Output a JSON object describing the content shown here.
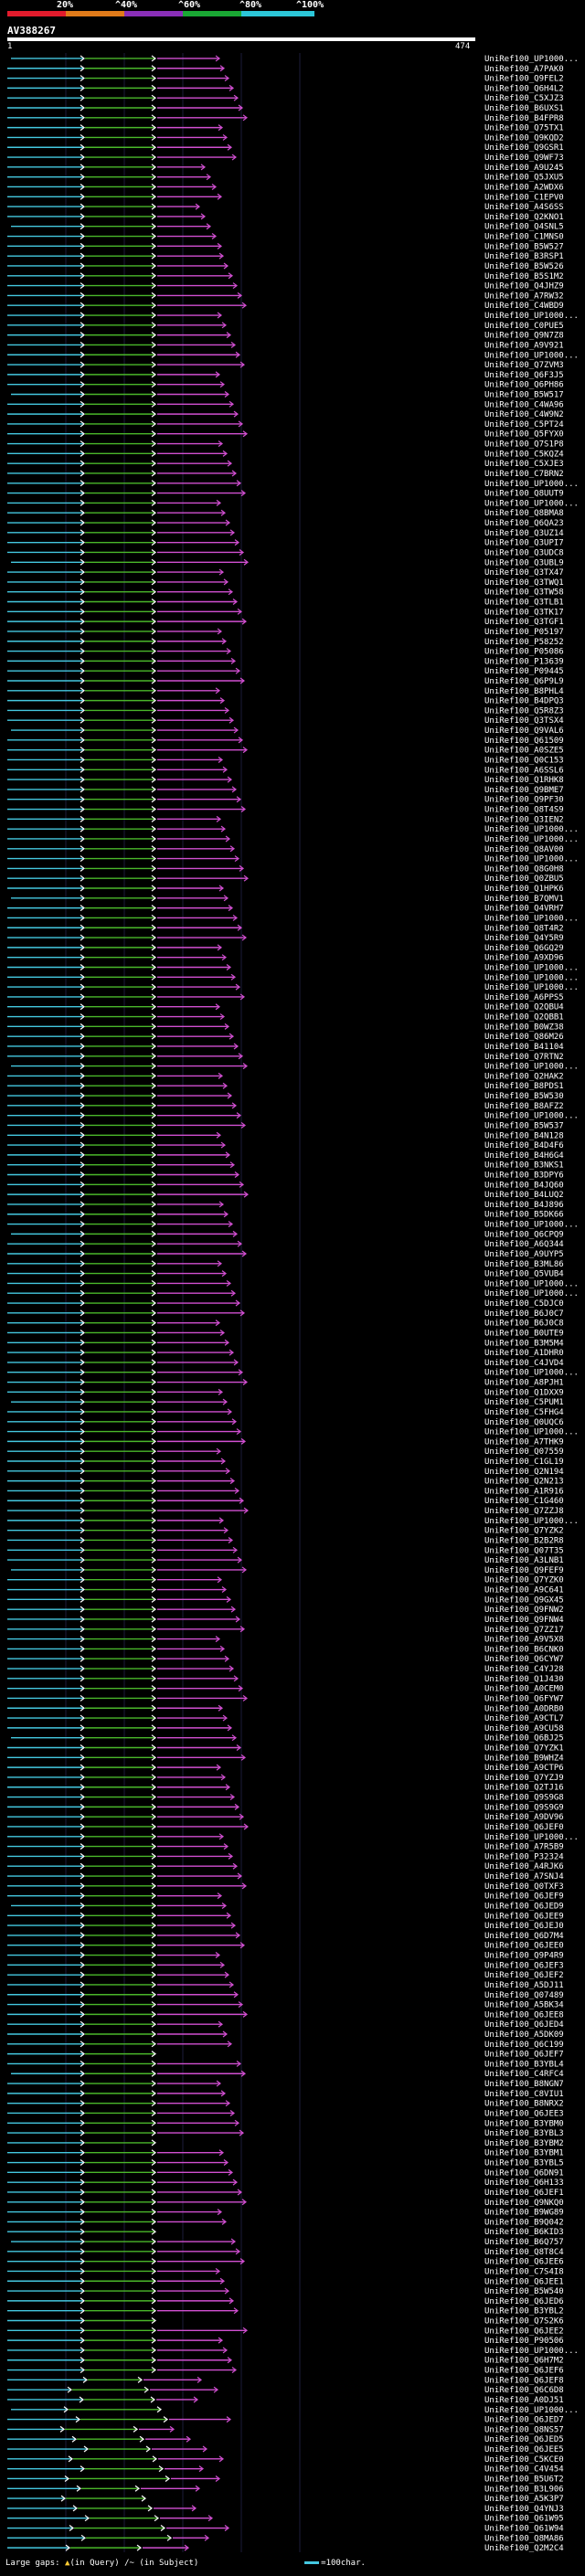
{
  "header": {
    "percent_scale": [
      "20%",
      "^40%",
      "^60%",
      "^80%",
      "^100%"
    ],
    "colors": {
      "scale_0_20": "#e21b2c",
      "scale_20_40": "#e07b1a",
      "scale_40_60": "#8a2fb8",
      "scale_60_80": "#1aa834",
      "scale_80_100": "#2cc6d8",
      "query_line": "#ffffff"
    }
  },
  "query": {
    "id": "AV388267",
    "start": "1",
    "end": "474"
  },
  "hit_colors": {
    "cyan": "#44c8e0",
    "green": "#4ab72a",
    "magenta": "#d14fd1",
    "white": "#ffffff"
  },
  "hits": [
    "UniRef100_UP1000...",
    "UniRef100_A7PAK0",
    "UniRef100_Q9FEL2",
    "UniRef100_Q6H4L2",
    "UniRef100_C5XJZ3",
    "UniRef100_B6UXS1",
    "UniRef100_B4FPR8",
    "UniRef100_Q75TX1",
    "UniRef100_Q9KQD2",
    "UniRef100_Q9GSR1",
    "UniRef100_Q9WF73",
    "UniRef100_A9U245",
    "UniRef100_Q5JXU5",
    "UniRef100_A2WDX6",
    "UniRef100_C1EPV0",
    "UniRef100_A4S6SS",
    "UniRef100_Q2KNO1",
    "UniRef100_Q4SNL5",
    "UniRef100_C1MNS0",
    "UniRef100_B5W527",
    "UniRef100_B3RSP1",
    "UniRef100_B5W526",
    "UniRef100_B5S1M2",
    "UniRef100_Q4JHZ9",
    "UniRef100_A7RW32",
    "UniRef100_C4WBD9",
    "UniRef100_UP1000...",
    "UniRef100_C0PUE5",
    "UniRef100_Q9N7Z8",
    "UniRef100_A9V921",
    "UniRef100_UP1000...",
    "UniRef100_Q7ZVM3",
    "UniRef100_Q6F3J5",
    "UniRef100_Q6PH86",
    "UniRef100_B5W517",
    "UniRef100_C4WA96",
    "UniRef100_C4W9N2",
    "UniRef100_C5PT24",
    "UniRef100_Q5FYX0",
    "UniRef100_Q7S1P8",
    "UniRef100_C5KQZ4",
    "UniRef100_C5XJE3",
    "UniRef100_C7BRN2",
    "UniRef100_UP1000...",
    "UniRef100_Q8UUT9",
    "UniRef100_UP1000...",
    "UniRef100_Q8BMA8",
    "UniRef100_Q6QA23",
    "UniRef100_Q3UZ14",
    "UniRef100_Q3UPI7",
    "UniRef100_Q3UDC8",
    "UniRef100_Q3UBL9",
    "UniRef100_Q3TX47",
    "UniRef100_Q3TWQ1",
    "UniRef100_Q3TW58",
    "UniRef100_Q3TLB1",
    "UniRef100_Q3TK17",
    "UniRef100_Q3TGF1",
    "UniRef100_P05197",
    "UniRef100_P58252",
    "UniRef100_P05086",
    "UniRef100_P13639",
    "UniRef100_P09445",
    "UniRef100_Q6P9L9",
    "UniRef100_B8PHL4",
    "UniRef100_B4DPQ3",
    "UniRef100_Q5R8Z3",
    "UniRef100_Q3TSX4",
    "UniRef100_Q9VAL6",
    "UniRef100_Q61509",
    "UniRef100_A0SZE5",
    "UniRef100_Q0C153",
    "UniRef100_A6SSL6",
    "UniRef100_Q1RHK8",
    "UniRef100_Q9BME7",
    "UniRef100_Q9PF30",
    "UniRef100_Q8T4S9",
    "UniRef100_Q3IEN2",
    "UniRef100_UP1000...",
    "UniRef100_UP1000...",
    "UniRef100_Q8AV00",
    "UniRef100_UP1000...",
    "UniRef100_Q8G0H8",
    "UniRef100_Q0ZBU5",
    "UniRef100_Q1HPK6",
    "UniRef100_B7QMV1",
    "UniRef100_Q4VRH7",
    "UniRef100_UP1000...",
    "UniRef100_Q8T4R2",
    "UniRef100_Q4Y5R9",
    "UniRef100_Q6GQ29",
    "UniRef100_A9XD96",
    "UniRef100_UP1000...",
    "UniRef100_UP1000...",
    "UniRef100_UP1000...",
    "UniRef100_A6PPS5",
    "UniRef100_Q2QBU4",
    "UniRef100_Q2QBB1",
    "UniRef100_B0WZ38",
    "UniRef100_Q86M26",
    "UniRef100_B41104",
    "UniRef100_Q7RTN2",
    "UniRef100_UP1000...",
    "UniRef100_Q2HAK2",
    "UniRef100_B8PDS1",
    "UniRef100_B5W530",
    "UniRef100_B8AFZ2",
    "UniRef100_UP1000...",
    "UniRef100_B5W537",
    "UniRef100_B4N128",
    "UniRef100_B4D4F6",
    "UniRef100_B4H6G4",
    "UniRef100_B3NKS1",
    "UniRef100_B3DPY6",
    "UniRef100_B4JQ60",
    "UniRef100_B4LUQ2",
    "UniRef100_B4J896",
    "UniRef100_B5DK66",
    "UniRef100_UP1000...",
    "UniRef100_Q6CPQ9",
    "UniRef100_A6Q344",
    "UniRef100_A9UYP5",
    "UniRef100_B3ML86",
    "UniRef100_Q5VUB4",
    "UniRef100_UP1000...",
    "UniRef100_UP1000...",
    "UniRef100_C5DJC0",
    "UniRef100_B6J0C7",
    "UniRef100_B6J0C8",
    "UniRef100_B0UTE9",
    "UniRef100_B3M5M4",
    "UniRef100_A1DHR0",
    "UniRef100_C4JVD4",
    "UniRef100_UP1000...",
    "UniRef100_A8PJH1",
    "UniRef100_Q1DXX9",
    "UniRef100_C5PUM1",
    "UniRef100_C5FHG4",
    "UniRef100_Q0UQC6",
    "UniRef100_UP1000...",
    "UniRef100_A7THK9",
    "UniRef100_Q07559",
    "UniRef100_C1GL19",
    "UniRef100_Q2N194",
    "UniRef100_Q2N213",
    "UniRef100_A1R916",
    "UniRef100_C1G460",
    "UniRef100_Q7ZZJ8",
    "UniRef100_UP1000...",
    "UniRef100_Q7YZK2",
    "UniRef100_B2B2R8",
    "UniRef100_Q07T35",
    "UniRef100_A3LNB1",
    "UniRef100_Q9FEF9",
    "UniRef100_Q7YZK0",
    "UniRef100_A9C641",
    "UniRef100_Q9GX45",
    "UniRef100_Q9FNW2",
    "UniRef100_Q9FNW4",
    "UniRef100_Q7ZZ17",
    "UniRef100_A9V5X8",
    "UniRef100_B6CNK0",
    "UniRef100_Q6CYW7",
    "UniRef100_C4YJ28",
    "UniRef100_Q1J430",
    "UniRef100_A0CEM0",
    "UniRef100_Q6FYW7",
    "UniRef100_A0DRB0",
    "UniRef100_A9CTL7",
    "UniRef100_A9CU58",
    "UniRef100_Q6BJ25",
    "UniRef100_Q7YZK1",
    "UniRef100_B9WHZ4",
    "UniRef100_A9CTP6",
    "UniRef100_Q7YZJ9",
    "UniRef100_Q2TJ16",
    "UniRef100_Q9S9G8",
    "UniRef100_Q9S9G9",
    "UniRef100_A9DV96",
    "UniRef100_Q6JEF0",
    "UniRef100_UP1000...",
    "UniRef100_A7R5B9",
    "UniRef100_P32324",
    "UniRef100_A4RJK6",
    "UniRef100_A7SNJ4",
    "UniRef100_Q0TXF3",
    "UniRef100_Q6JEF9",
    "UniRef100_Q6JED9",
    "UniRef100_Q6JEE9",
    "UniRef100_Q6JEJ0",
    "UniRef100_Q6D7M4",
    "UniRef100_Q6JEE0",
    "UniRef100_Q9P4R9",
    "UniRef100_Q6JEF3",
    "UniRef100_Q6JEF2",
    "UniRef100_A5DJ11",
    "UniRef100_Q07489",
    "UniRef100_A5BK34",
    "UniRef100_Q6JEE8",
    "UniRef100_Q6JED4",
    "UniRef100_A5DK09",
    "UniRef100_Q6C199",
    "UniRef100_Q6JEF7",
    "UniRef100_B3YBL4",
    "UniRef100_C4RFC4",
    "UniRef100_B8NGN7",
    "UniRef100_C8VIU1",
    "UniRef100_B8NRX2",
    "UniRef100_Q6JEE3",
    "UniRef100_B3YBM0",
    "UniRef100_B3YBL3",
    "UniRef100_B3YBM2",
    "UniRef100_B3YBM1",
    "UniRef100_B3YBL5",
    "UniRef100_Q6DN91",
    "UniRef100_Q6H133",
    "UniRef100_Q6JEF1",
    "UniRef100_Q9NKQ0",
    "UniRef100_B9WG89",
    "UniRef100_B9Q042",
    "UniRef100_B6KID3",
    "UniRef100_B6Q757",
    "UniRef100_Q8T8C4",
    "UniRef100_Q6JEE6",
    "UniRef100_C7S4I8",
    "UniRef100_Q6JEE1",
    "UniRef100_B5W540",
    "UniRef100_Q6JED6",
    "UniRef100_B3YBL2",
    "UniRef100_Q7S2K6",
    "UniRef100_Q6JEE2",
    "UniRef100_P90506",
    "UniRef100_UP1000...",
    "UniRef100_Q6H7M2",
    "UniRef100_Q6JEF6",
    "UniRef100_Q6JEF8",
    "UniRef100_Q6C6D8",
    "UniRef100_A0DJ51",
    "UniRef100_UP1000...",
    "UniRef100_Q6JED7",
    "UniRef100_Q8NS57",
    "UniRef100_Q6JED5",
    "UniRef100_Q6JEE5",
    "UniRef100_C5KCE0",
    "UniRef100_C4V454",
    "UniRef100_B5U6T2",
    "UniRef100_B3L906",
    "UniRef100_A5K3P7",
    "UniRef100_Q4YNJ3",
    "UniRef100_Q61W95",
    "UniRef100_Q61W94",
    "UniRef100_Q8MA86",
    "UniRef100_Q2M2C4"
  ],
  "footer": {
    "large_gaps_label": "Large gaps:",
    "in_query_label": "(in Query)",
    "in_subject_label": "(in Subject)",
    "scale_label": "=100char."
  }
}
